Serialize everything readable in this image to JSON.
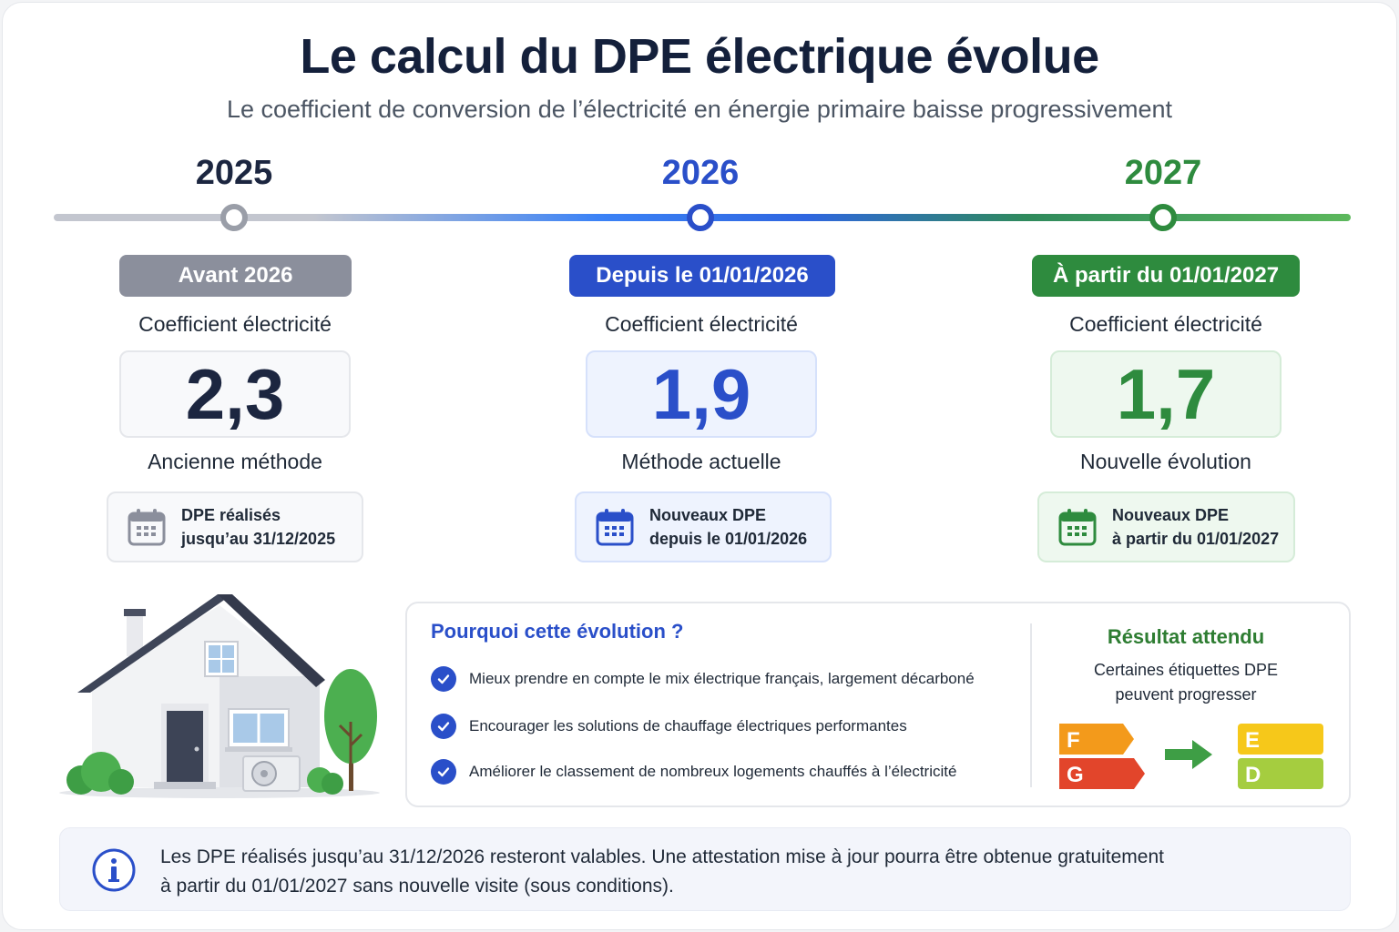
{
  "header": {
    "title": "Le calcul du DPE électrique évolue",
    "subtitle": "Le coefficient de conversion de l’électricité en énergie primaire baisse progressivement"
  },
  "timeline": [
    {
      "year": "2025",
      "period": "Avant 2026",
      "coef_label": "Coefficient électricité",
      "value": "2,3",
      "method": "Ancienne méthode",
      "dpe_line1": "DPE réalisés",
      "dpe_line2": "jusqu’au 31/12/2025",
      "color": "#8b8f9c",
      "icon": "calendar-icon"
    },
    {
      "year": "2026",
      "period": "Depuis le 01/01/2026",
      "coef_label": "Coefficient électricité",
      "value": "1,9",
      "method": "Méthode actuelle",
      "dpe_line1": "Nouveaux DPE",
      "dpe_line2": "depuis le 01/01/2026",
      "color": "#2a4fc9",
      "icon": "calendar-icon"
    },
    {
      "year": "2027",
      "period": "À partir du 01/01/2027",
      "coef_label": "Coefficient électricité",
      "value": "1,7",
      "method": "Nouvelle évolution",
      "dpe_line1": "Nouveaux DPE",
      "dpe_line2": "à partir du 01/01/2027",
      "color": "#2e8b3e",
      "icon": "calendar-icon"
    }
  ],
  "why": {
    "title": "Pourquoi cette évolution ?",
    "reasons": [
      "Mieux prendre en compte le mix électrique français, largement décarboné",
      "Encourager les solutions de chauffage électriques performantes",
      "Améliorer le classement de nombreux logements chauffés à l’électricité"
    ]
  },
  "result": {
    "title": "Résultat attendu",
    "desc_line1": "Certaines étiquettes DPE",
    "desc_line2": "peuvent progresser",
    "from_labels": [
      "F",
      "G"
    ],
    "to_labels": [
      "E",
      "D"
    ],
    "label_colors": {
      "F": "#f39a1b",
      "G": "#e2452b",
      "E": "#f6c81a",
      "D": "#a5cd3f"
    }
  },
  "info": {
    "line1": "Les DPE réalisés jusqu’au 31/12/2026 resteront valables. Une attestation mise à jour pourra être obtenue gratuitement",
    "line2": "à partir du 01/01/2027 sans nouvelle visite (sous conditions)."
  }
}
